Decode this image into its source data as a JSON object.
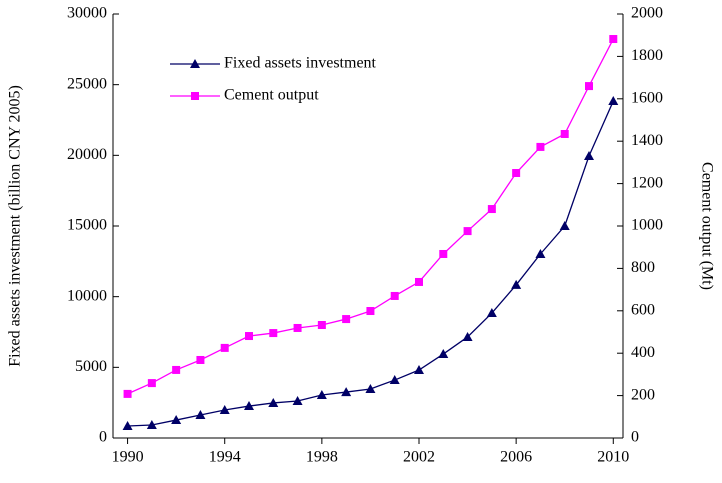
{
  "chart_data": {
    "type": "line",
    "x": [
      1990,
      1991,
      1992,
      1993,
      1994,
      1995,
      1996,
      1997,
      1998,
      1999,
      2000,
      2001,
      2002,
      2003,
      2004,
      2005,
      2006,
      2007,
      2008,
      2009,
      2010
    ],
    "xlim": [
      1989.4,
      2010.4
    ],
    "xticks": [
      1990,
      1994,
      1998,
      2002,
      2006,
      2010
    ],
    "ylabel": "Fixed assets investment (billion CNY 2005)",
    "ylim": [
      0,
      30000
    ],
    "yticks": [
      0,
      5000,
      10000,
      15000,
      20000,
      25000,
      30000
    ],
    "y2label": "Cement output (Mt)",
    "y2lim": [
      0,
      2000
    ],
    "y2ticks": [
      0,
      200,
      400,
      600,
      800,
      1000,
      1200,
      1400,
      1600,
      1800,
      2000
    ],
    "legend": "upper left",
    "series": [
      {
        "name": "Fixed assets investment",
        "color": "#000066",
        "marker": "triangle",
        "axis": "y",
        "values": [
          850,
          920,
          1270,
          1630,
          1980,
          2260,
          2480,
          2620,
          3040,
          3250,
          3470,
          4100,
          4810,
          5940,
          7150,
          8840,
          10830,
          13020,
          15000,
          19950,
          23840
        ]
      },
      {
        "name": "Cement output",
        "color": "#ff00ff",
        "marker": "square",
        "axis": "y2",
        "values": [
          208,
          259,
          321,
          368,
          425,
          481,
          495,
          519,
          533,
          561,
          599,
          670,
          736,
          868,
          976,
          1080,
          1250,
          1373,
          1434,
          1660,
          1882
        ]
      }
    ]
  }
}
